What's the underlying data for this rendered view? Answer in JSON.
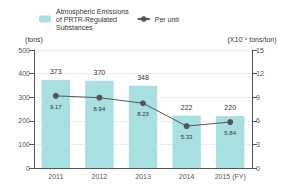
{
  "chart_data": {
    "type": "bar",
    "categories": [
      "2011",
      "2012",
      "2013",
      "2014",
      "2015 (FY)"
    ],
    "series": [
      {
        "name": "Atmospheric Emissions\nof PRTR-Regulated\nSubstances",
        "type": "bar",
        "color": "#a8dfe0",
        "values": [
          373,
          370,
          348,
          222,
          220
        ]
      },
      {
        "name": "Per unit",
        "type": "line",
        "color": "#555555",
        "marker": "circle",
        "axis": "y2",
        "values": [
          9.17,
          8.94,
          8.23,
          5.33,
          5.84
        ]
      }
    ],
    "ylabel": "(tons)",
    "y2label": "(X10⁻⁴ tons/ton)",
    "ylim": [
      0,
      500
    ],
    "yticks": [
      0,
      100,
      200,
      300,
      400,
      500
    ],
    "y2lim": [
      0,
      15
    ],
    "y2ticks": [
      0,
      3,
      6,
      9,
      12,
      15
    ],
    "grid": true,
    "legend": "upper left",
    "data_labels": true
  }
}
